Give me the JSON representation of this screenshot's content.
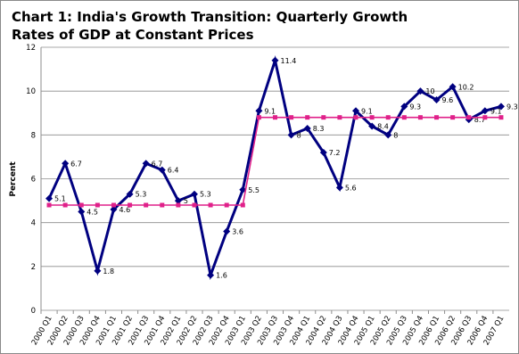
{
  "chart_data": {
    "type": "line",
    "title": "Chart 1: India's Growth Transition: Quarterly Growth Rates of GDP at Constant Prices",
    "y_label": "Percent",
    "categories": [
      "2000 Q1",
      "2000 Q2",
      "2000 Q3",
      "2000 Q4",
      "2001 Q1",
      "2001 Q2",
      "2001 Q3",
      "2001 Q4",
      "2002 Q1",
      "2002 Q2",
      "2002 Q3",
      "2002 Q4",
      "2003 Q1",
      "2003 Q2",
      "2003 Q3",
      "2003 Q4",
      "2004 Q1",
      "2004 Q2",
      "2004 Q3",
      "2004 Q4",
      "2005 Q1",
      "2005 Q2",
      "2005 Q3",
      "2005 Q4",
      "2006 Q1",
      "2006 Q2",
      "2006 Q3",
      "2006 Q4",
      "2007 Q1"
    ],
    "series": [
      {
        "color": "#000080",
        "values": [
          5.1,
          6.7,
          4.5,
          1.8,
          4.6,
          5.3,
          6.7,
          6.4,
          5,
          5.3,
          1.6,
          3.6,
          5.5,
          9.1,
          11.4,
          8,
          8.3,
          7.2,
          5.6,
          9.1,
          8.4,
          8,
          9.3,
          10,
          9.6,
          10.2,
          8.7,
          9.1,
          9.3
        ]
      },
      {
        "color": "#e0218a",
        "values": [
          4.8,
          4.8,
          4.8,
          4.8,
          4.8,
          4.8,
          4.8,
          4.8,
          4.8,
          4.8,
          4.8,
          4.8,
          4.8,
          8.8,
          8.8,
          8.8,
          8.8,
          8.8,
          8.8,
          8.8,
          8.8,
          8.8,
          8.8,
          8.8,
          8.8,
          8.8,
          8.8,
          8.8,
          8.8
        ]
      }
    ],
    "ylim": [
      0,
      12
    ],
    "yticks": [
      0,
      2,
      4,
      6,
      8,
      10,
      12
    ],
    "grid": true
  }
}
